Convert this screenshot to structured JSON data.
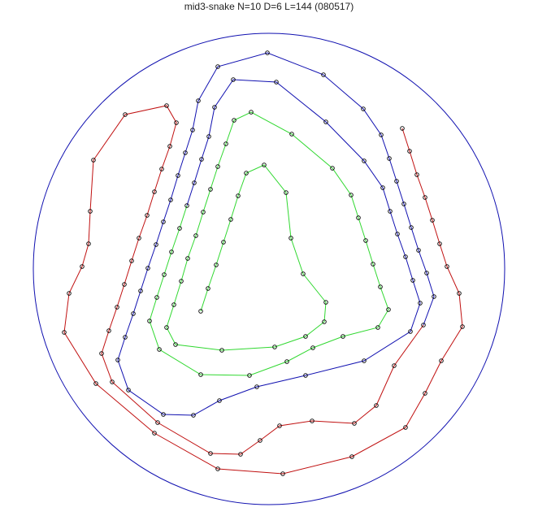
{
  "title": "mid3-snake N=10 D=6 L=144 (080517)",
  "colors": {
    "boundary": "#1010b0",
    "segment_1": "#c01010",
    "segment_2": "#1010b0",
    "segment_3": "#30d830",
    "marker": "#000000"
  },
  "marker": "open-circle"
}
